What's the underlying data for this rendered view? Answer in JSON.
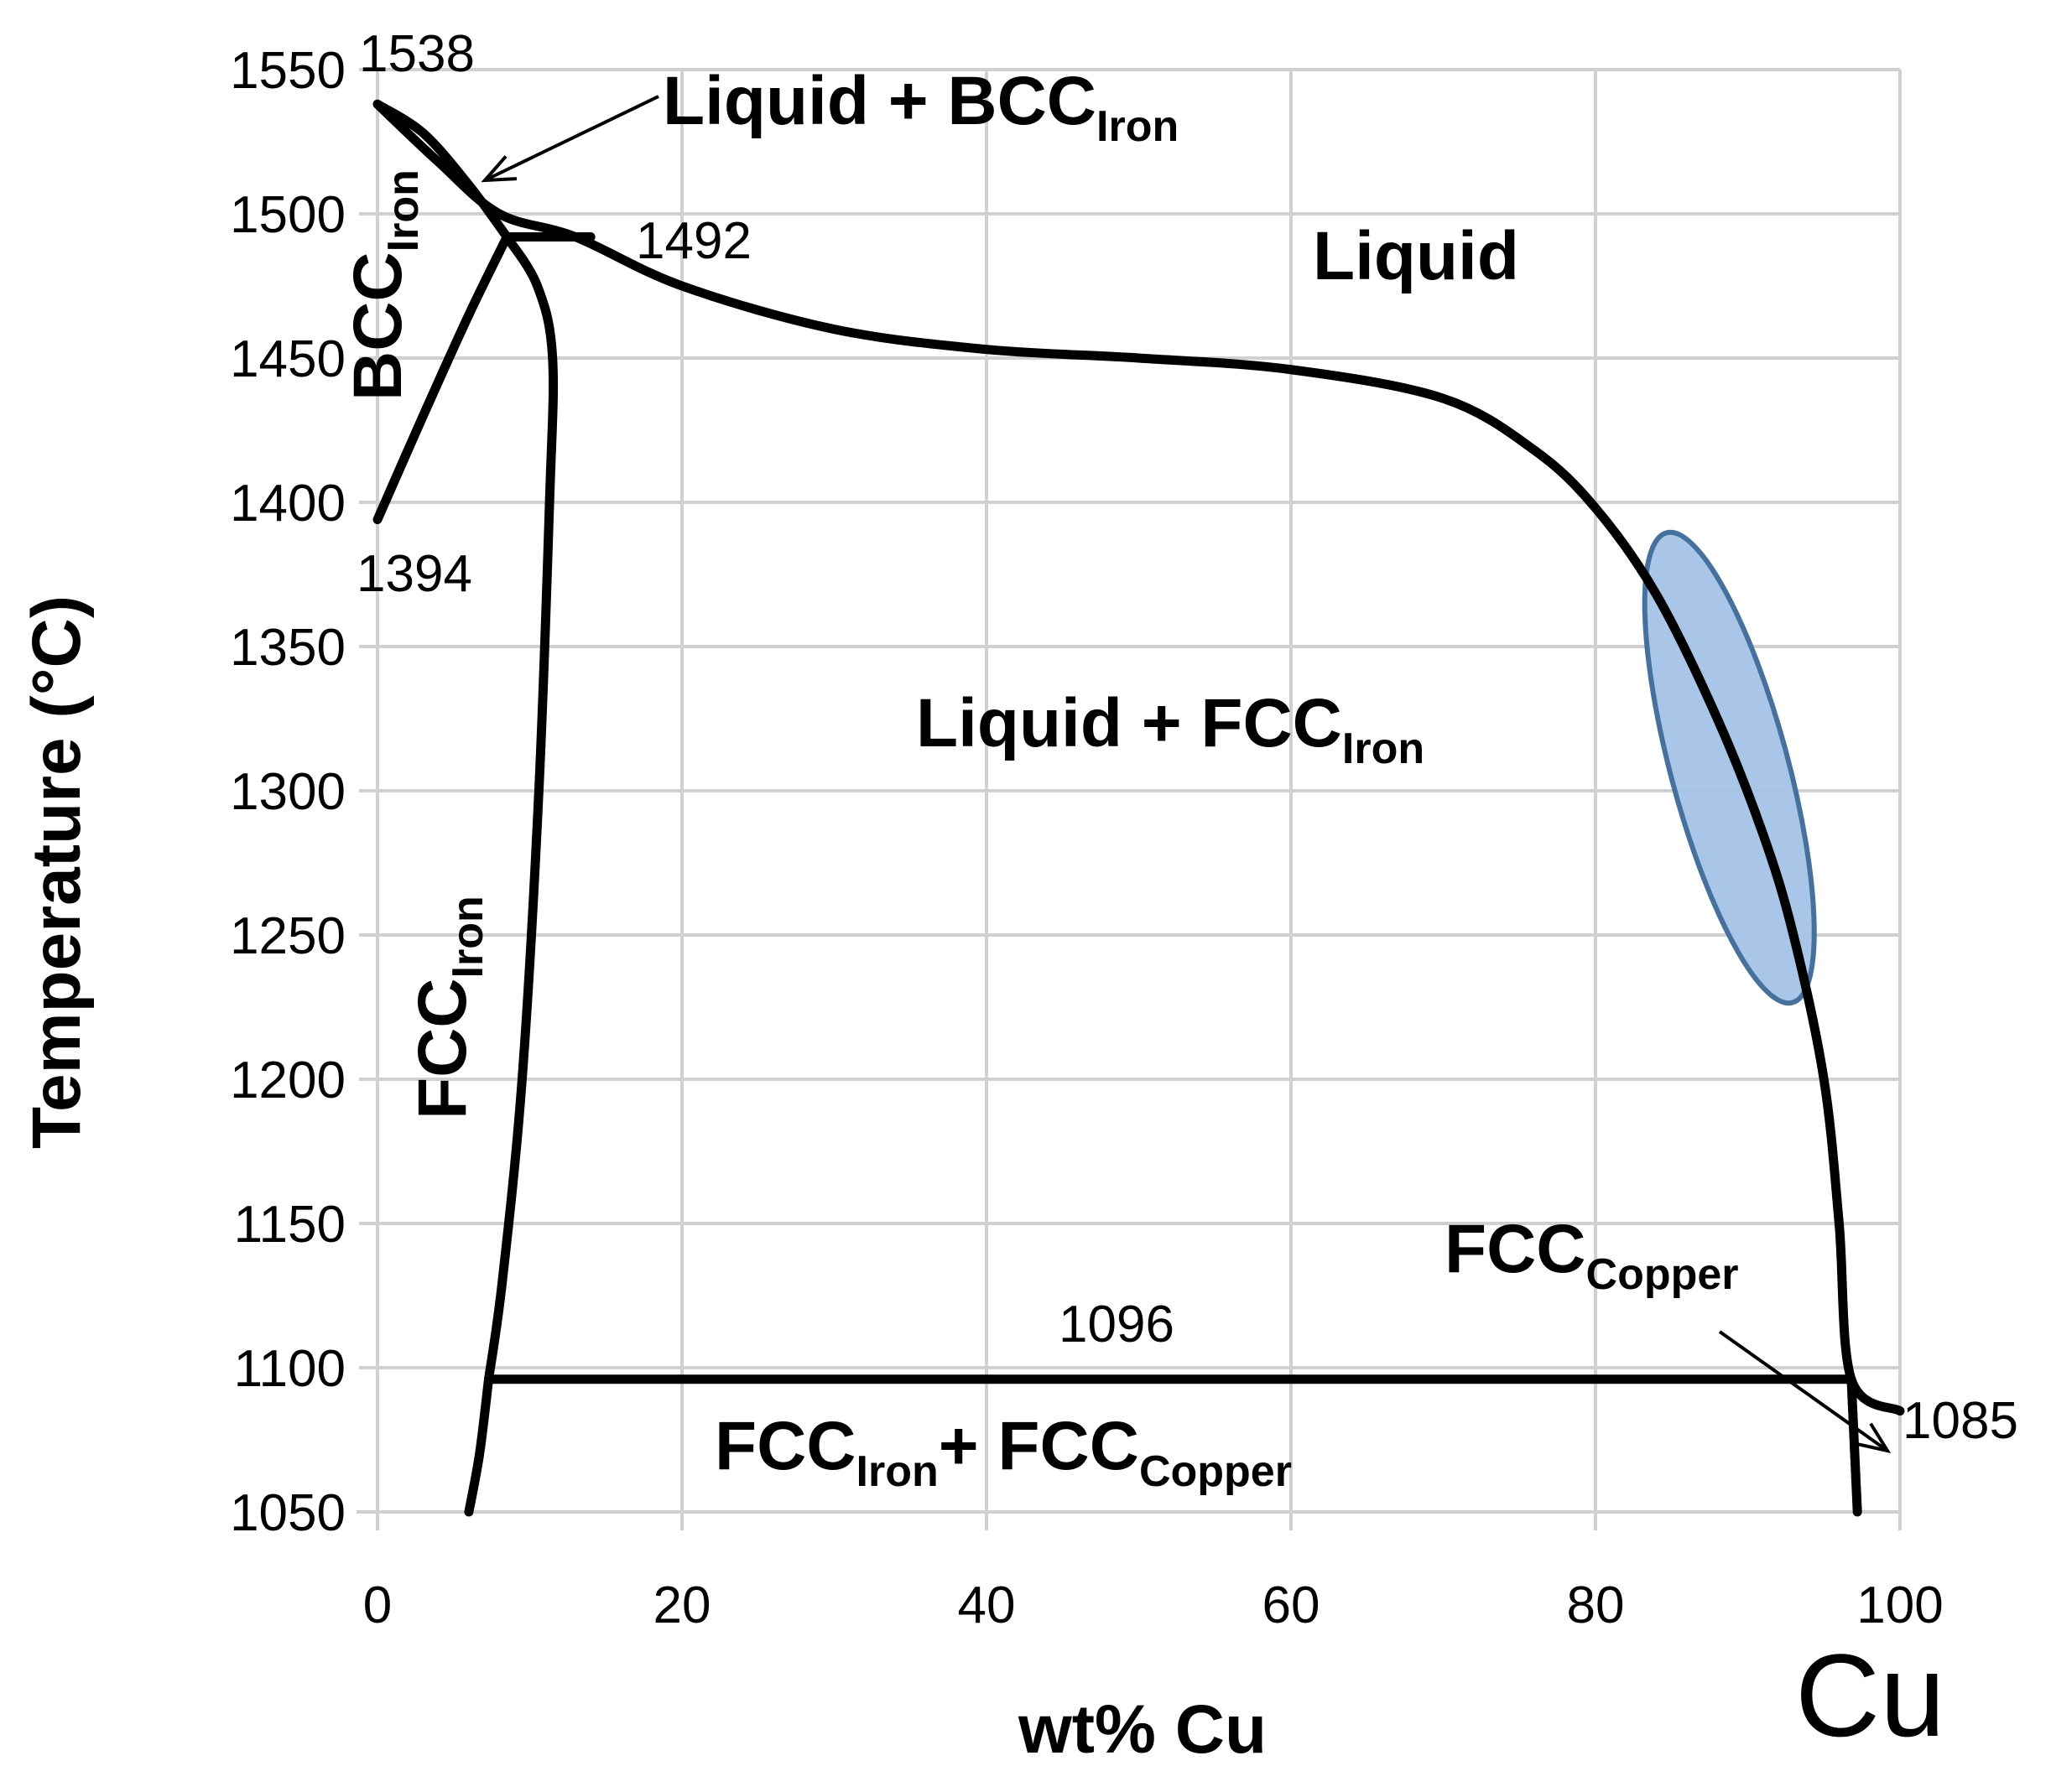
{
  "chart_data": {
    "type": "line",
    "title": "",
    "xlabel": "wt% Cu",
    "ylabel": "Temperature (°C)",
    "xlim": [
      0,
      100
    ],
    "ylim": [
      1050,
      1550
    ],
    "xticks": [
      "0",
      "20",
      "40",
      "60",
      "80",
      "100"
    ],
    "yticks": [
      "1050",
      "1100",
      "1150",
      "1200",
      "1250",
      "1300",
      "1350",
      "1400",
      "1450",
      "1500",
      "1550"
    ],
    "xtick_values": [
      0,
      20,
      40,
      60,
      80,
      100
    ],
    "ytick_values": [
      1050,
      1100,
      1150,
      1200,
      1250,
      1300,
      1350,
      1400,
      1450,
      1500,
      1550
    ],
    "grid": true,
    "corner_label": "Cu",
    "series": [
      {
        "name": "liquidus",
        "points": [
          [
            0,
            1538
          ],
          [
            4,
            1518
          ],
          [
            8,
            1500
          ],
          [
            13,
            1492
          ],
          [
            20,
            1475
          ],
          [
            30,
            1460
          ],
          [
            40,
            1453
          ],
          [
            50,
            1450
          ],
          [
            60,
            1446
          ],
          [
            70,
            1436
          ],
          [
            76,
            1418
          ],
          [
            80,
            1398
          ],
          [
            84,
            1368
          ],
          [
            88,
            1325
          ],
          [
            91,
            1285
          ],
          [
            93,
            1250
          ],
          [
            95,
            1200
          ],
          [
            96,
            1150
          ],
          [
            96.8,
            1096
          ],
          [
            100,
            1085
          ]
        ]
      },
      {
        "name": "bcc-solidus",
        "points": [
          [
            0,
            1538
          ],
          [
            3,
            1528
          ],
          [
            6,
            1510
          ],
          [
            8.5,
            1492
          ]
        ]
      },
      {
        "name": "bcc-gamma-boundary",
        "points": [
          [
            0,
            1394
          ],
          [
            3,
            1430
          ],
          [
            6,
            1465
          ],
          [
            8.5,
            1492
          ]
        ]
      },
      {
        "name": "fcc-iron-solidus",
        "points": [
          [
            8.5,
            1492
          ],
          [
            10.5,
            1475
          ],
          [
            11.5,
            1450
          ],
          [
            11.3,
            1400
          ],
          [
            10.6,
            1300
          ],
          [
            9.5,
            1200
          ],
          [
            8.2,
            1130
          ],
          [
            7.3,
            1096
          ]
        ]
      },
      {
        "name": "fcc-iron-solvus",
        "points": [
          [
            7.3,
            1096
          ],
          [
            6.7,
            1070
          ],
          [
            6,
            1050
          ]
        ]
      },
      {
        "name": "peritectic-1492",
        "points": [
          [
            8.5,
            1492
          ],
          [
            14,
            1492
          ]
        ]
      },
      {
        "name": "eutectic-1096",
        "points": [
          [
            7.3,
            1096
          ],
          [
            96.8,
            1096
          ]
        ]
      },
      {
        "name": "fcc-copper-solvus",
        "points": [
          [
            96.8,
            1096
          ],
          [
            97.2,
            1050
          ]
        ]
      }
    ],
    "highlight": {
      "shape": "ellipse",
      "center": [
        88.8,
        1308
      ],
      "color": "#a4c2e6",
      "stroke": "#46719c"
    },
    "annotations": {
      "t1538": "1538",
      "t1492": "1492",
      "t1394": "1394",
      "t1096": "1096",
      "t1085": "1085"
    },
    "phase_labels": {
      "liquid": "Liquid",
      "liquid_bcc": {
        "main": "Liquid + BCC",
        "sub": "Iron"
      },
      "liquid_fcc": {
        "main": "Liquid + FCC",
        "sub": "Iron"
      },
      "bcc": {
        "main": "BCC",
        "sub": "Iron"
      },
      "fcc_iron": {
        "main": "FCC",
        "sub": "Iron"
      },
      "fcc_copper": {
        "main": "FCC",
        "sub": "Copper"
      },
      "fcc_two_phase": {
        "main1": "FCC",
        "sub1": "Iron",
        "plus": "+ ",
        "main2": "FCC",
        "sub2": "Copper"
      }
    }
  }
}
